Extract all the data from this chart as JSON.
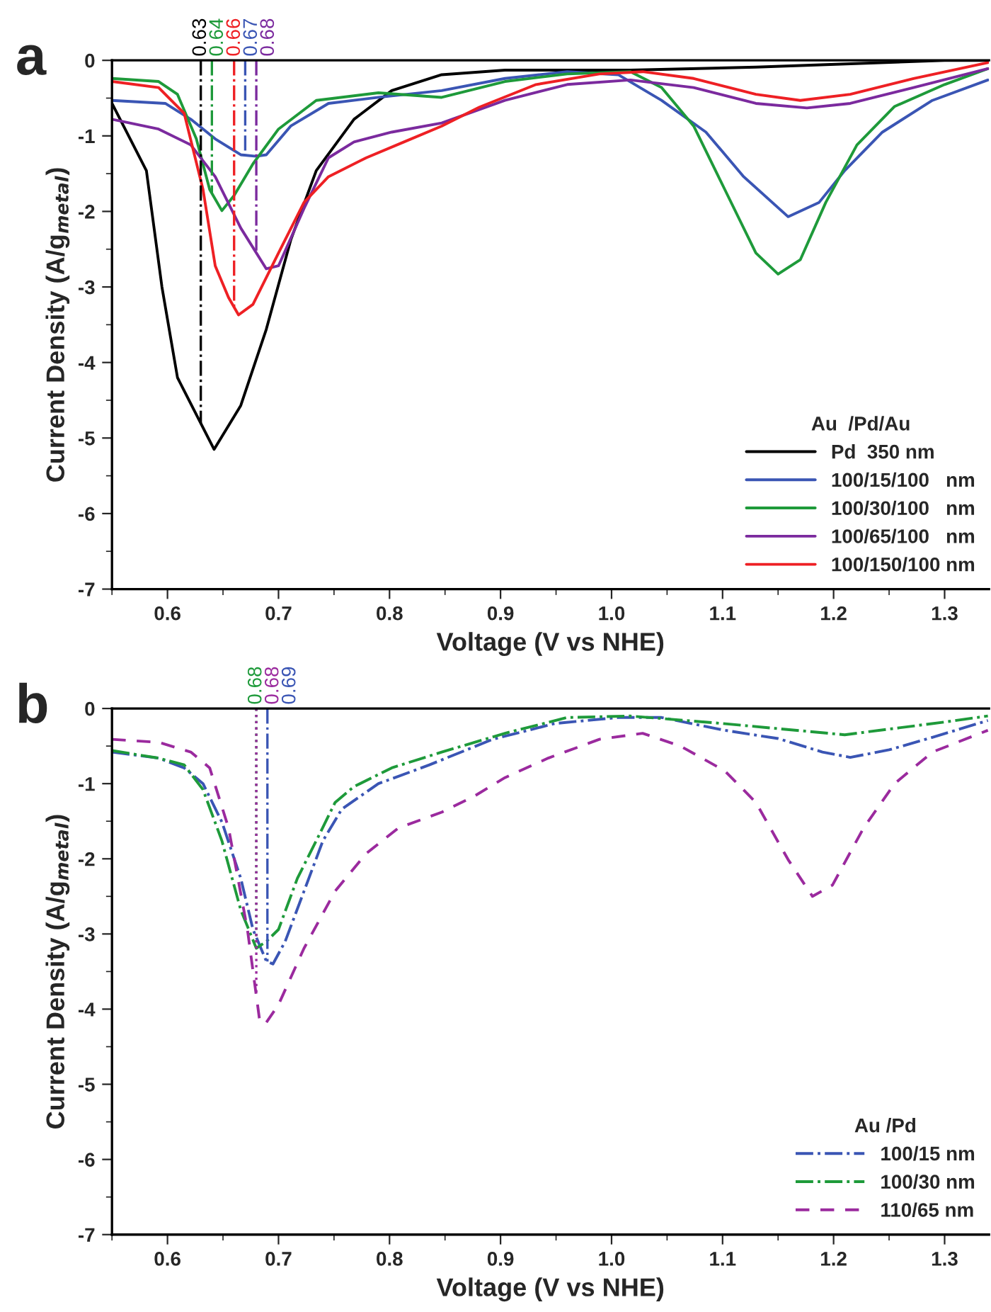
{
  "chart_data": [
    {
      "type": "line",
      "title": "a",
      "xlabel": "Voltage (V vs NHE)",
      "ylabel": "Current Density (A/g$_{metal}$)",
      "legend_title": "Au  /Pd/Au",
      "legend": "bottom right",
      "grid": false,
      "marker": "none",
      "xlim": [
        0.55,
        1.34
      ],
      "xticks": [
        0.6,
        0.7,
        0.8,
        0.9,
        {
          "value": 1.0,
          "label": "1.0"
        },
        1.1,
        1.2,
        1.3
      ],
      "ylim": [
        -7,
        0
      ],
      "yticks": [
        -7,
        -6,
        -5,
        -4,
        -3,
        -2,
        -1,
        0
      ],
      "series": [
        {
          "name": "Pd  350 nm",
          "color": "#000000",
          "line_style": "solid",
          "x": [
            0.55,
            0.581,
            0.595,
            0.609,
            0.642,
            0.666,
            0.689,
            0.711,
            0.734,
            0.768,
            0.802,
            0.847,
            0.904,
            1.017,
            1.13,
            1.3,
            1.339
          ],
          "values": [
            -0.57,
            -1.46,
            -3.0,
            -4.2,
            -5.15,
            -4.57,
            -3.56,
            -2.38,
            -1.46,
            -0.78,
            -0.4,
            -0.19,
            -0.13,
            -0.13,
            -0.09,
            0,
            0
          ]
        },
        {
          "name": "100/15/100   nm",
          "color": "#3a55b4",
          "line_style": "solid",
          "x": [
            0.55,
            0.598,
            0.621,
            0.643,
            0.666,
            0.68,
            0.689,
            0.711,
            0.745,
            0.79,
            0.847,
            0.904,
            0.96,
            1.006,
            1.045,
            1.085,
            1.119,
            1.159,
            1.187,
            1.21,
            1.244,
            1.289,
            1.339
          ],
          "values": [
            -0.53,
            -0.57,
            -0.78,
            -1.04,
            -1.25,
            -1.27,
            -1.25,
            -0.87,
            -0.57,
            -0.49,
            -0.4,
            -0.24,
            -0.15,
            -0.19,
            -0.53,
            -0.95,
            -1.54,
            -2.07,
            -1.88,
            -1.46,
            -0.95,
            -0.53,
            -0.26
          ]
        },
        {
          "name": "100/30/100   nm",
          "color": "#1e9a3a",
          "line_style": "solid",
          "x": [
            0.55,
            0.592,
            0.609,
            0.626,
            0.638,
            0.649,
            0.66,
            0.677,
            0.7,
            0.734,
            0.79,
            0.847,
            0.904,
            0.96,
            1.017,
            1.045,
            1.074,
            1.102,
            1.13,
            1.15,
            1.17,
            1.193,
            1.221,
            1.255,
            1.3,
            1.339
          ],
          "values": [
            -0.24,
            -0.28,
            -0.45,
            -1.04,
            -1.71,
            -1.99,
            -1.79,
            -1.37,
            -0.91,
            -0.53,
            -0.43,
            -0.49,
            -0.28,
            -0.18,
            -0.15,
            -0.36,
            -0.87,
            -1.71,
            -2.55,
            -2.83,
            -2.64,
            -1.88,
            -1.12,
            -0.61,
            -0.32,
            -0.11
          ]
        },
        {
          "name": "100/65/100   nm",
          "color": "#7b2a9e",
          "line_style": "solid",
          "x": [
            0.55,
            0.592,
            0.621,
            0.643,
            0.666,
            0.689,
            0.7,
            0.723,
            0.745,
            0.768,
            0.802,
            0.847,
            0.904,
            0.96,
            1.017,
            1.074,
            1.13,
            1.176,
            1.215,
            1.272,
            1.339
          ],
          "values": [
            -0.78,
            -0.91,
            -1.12,
            -1.54,
            -2.22,
            -2.76,
            -2.72,
            -1.96,
            -1.29,
            -1.08,
            -0.95,
            -0.83,
            -0.53,
            -0.32,
            -0.26,
            -0.36,
            -0.57,
            -0.63,
            -0.57,
            -0.36,
            -0.11
          ]
        },
        {
          "name": "100/150/100 nm",
          "color": "#ee2024",
          "line_style": "solid",
          "x": [
            0.55,
            0.592,
            0.615,
            0.632,
            0.643,
            0.655,
            0.664,
            0.677,
            0.7,
            0.723,
            0.745,
            0.779,
            0.813,
            0.847,
            0.881,
            0.932,
            0.989,
            1.028,
            1.074,
            1.13,
            1.17,
            1.215,
            1.272,
            1.339
          ],
          "values": [
            -0.28,
            -0.36,
            -0.7,
            -1.71,
            -2.72,
            -3.14,
            -3.37,
            -3.23,
            -2.55,
            -1.88,
            -1.54,
            -1.29,
            -1.08,
            -0.87,
            -0.62,
            -0.32,
            -0.18,
            -0.15,
            -0.24,
            -0.45,
            -0.53,
            -0.45,
            -0.24,
            -0.03
          ]
        }
      ],
      "ref_lines": [
        {
          "axis": "x",
          "value": 0.63,
          "label": "0.63",
          "color": "#000000",
          "line_style": "dashdot"
        },
        {
          "axis": "x",
          "value": 0.64,
          "label": "0.64",
          "color": "#1e9a3a",
          "line_style": "dashdot"
        },
        {
          "axis": "x",
          "value": 0.66,
          "label": "0.66",
          "color": "#ee2024",
          "line_style": "dashdot"
        },
        {
          "axis": "x",
          "value": 0.67,
          "label": "0.67",
          "color": "#3a55b4",
          "line_style": "dashdot"
        },
        {
          "axis": "x",
          "value": 0.68,
          "label": "0.68",
          "color": "#7b2a9e",
          "line_style": "dashdot"
        }
      ]
    },
    {
      "type": "line",
      "title": "b",
      "xlabel": "Voltage (V vs NHE)",
      "ylabel": "Current Density (A/g$_{metal}$)",
      "legend_title": "Au /Pd",
      "legend": "bottom right",
      "grid": false,
      "marker": "none",
      "xlim": [
        0.55,
        1.34
      ],
      "xticks": [
        0.6,
        0.7,
        0.8,
        0.9,
        {
          "value": 1.0,
          "label": "1.0"
        },
        1.1,
        1.2,
        1.3
      ],
      "ylim": [
        -7,
        0
      ],
      "yticks": [
        -7,
        -6,
        -5,
        -4,
        -3,
        -2,
        -1,
        0
      ],
      "series": [
        {
          "name": "100/15 nm",
          "color": "#3a55b4",
          "line_style": "dashdot",
          "x": [
            0.55,
            0.592,
            0.615,
            0.632,
            0.649,
            0.666,
            0.677,
            0.689,
            0.695,
            0.706,
            0.723,
            0.74,
            0.757,
            0.79,
            0.836,
            0.893,
            0.949,
            1.006,
            1.045,
            1.102,
            1.15,
            1.19,
            1.215,
            1.25,
            1.29,
            1.339
          ],
          "values": [
            -0.58,
            -0.66,
            -0.79,
            -1.0,
            -1.51,
            -2.26,
            -2.94,
            -3.36,
            -3.4,
            -3.1,
            -2.43,
            -1.76,
            -1.34,
            -1.0,
            -0.75,
            -0.41,
            -0.2,
            -0.12,
            -0.12,
            -0.29,
            -0.4,
            -0.58,
            -0.65,
            -0.55,
            -0.38,
            -0.16
          ]
        },
        {
          "name": "100/30 nm",
          "color": "#1e9a3a",
          "line_style": "dashdot",
          "x": [
            0.55,
            0.592,
            0.615,
            0.632,
            0.649,
            0.666,
            0.68,
            0.689,
            0.7,
            0.717,
            0.734,
            0.751,
            0.768,
            0.802,
            0.847,
            0.904,
            0.96,
            1.017,
            1.1,
            1.21,
            1.3,
            1.339
          ],
          "values": [
            -0.56,
            -0.66,
            -0.75,
            -1.08,
            -1.76,
            -2.68,
            -3.19,
            -3.1,
            -2.94,
            -2.26,
            -1.76,
            -1.25,
            -1.04,
            -0.79,
            -0.58,
            -0.33,
            -0.12,
            -0.1,
            -0.2,
            -0.35,
            -0.18,
            -0.1
          ]
        },
        {
          "name": "110/65 nm",
          "color": "#9b2a9e",
          "line_style": "dashed",
          "x": [
            0.55,
            0.592,
            0.621,
            0.638,
            0.655,
            0.672,
            0.683,
            0.688,
            0.7,
            0.723,
            0.751,
            0.779,
            0.808,
            0.847,
            0.876,
            0.904,
            0.943,
            0.989,
            1.028,
            1.062,
            1.102,
            1.13,
            1.159,
            1.181,
            1.199,
            1.227,
            1.255,
            1.289,
            1.339
          ],
          "values": [
            -0.41,
            -0.45,
            -0.58,
            -0.79,
            -1.59,
            -2.94,
            -4.15,
            -4.2,
            -3.94,
            -3.19,
            -2.43,
            -1.93,
            -1.59,
            -1.38,
            -1.17,
            -0.92,
            -0.66,
            -0.41,
            -0.33,
            -0.5,
            -0.83,
            -1.25,
            -2.01,
            -2.5,
            -2.35,
            -1.59,
            -1.0,
            -0.58,
            -0.29
          ]
        }
      ],
      "ref_lines": [
        {
          "axis": "x",
          "value": 0.68,
          "label": "0.68",
          "color": "#1e9a3a",
          "line_style": "dotted"
        },
        {
          "axis": "x",
          "value": 0.68,
          "label": "0.68",
          "color": "#9b2a9e",
          "line_style": "dotted"
        },
        {
          "axis": "x",
          "value": 0.69,
          "label": "0.69",
          "color": "#3a55b4",
          "line_style": "dashdot"
        }
      ]
    }
  ]
}
